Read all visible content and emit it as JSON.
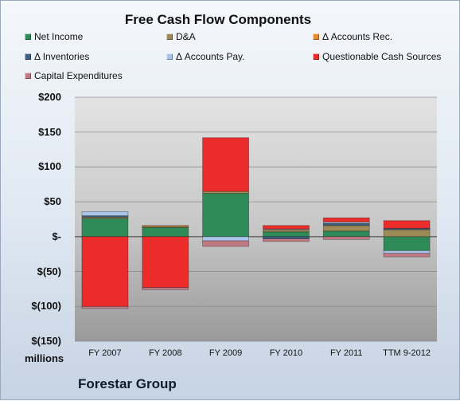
{
  "chart_data": {
    "type": "bar",
    "stacked": true,
    "title": "Free Cash Flow Components",
    "unit_label": "millions",
    "ylim": [
      -150,
      200
    ],
    "yticks": [
      200,
      150,
      100,
      50,
      0,
      -50,
      -100,
      -150
    ],
    "ytick_labels": [
      "$200",
      "$150",
      "$100",
      "$50",
      "$-",
      "$(50)",
      "$(100)",
      "$(150)"
    ],
    "grid": true,
    "legend_position": "top",
    "categories": [
      "FY 2007",
      "FY 2008",
      "FY 2009",
      "FY 2010",
      "FY 2011",
      "TTM 9-2012"
    ],
    "series": [
      {
        "name": "Net Income",
        "color": "#2e8b57",
        "values": [
          26,
          13,
          62,
          7,
          8,
          -20
        ]
      },
      {
        "name": "D&A",
        "color": "#9c8a57",
        "values": [
          2,
          2,
          3,
          3,
          8,
          10
        ]
      },
      {
        "name": "Δ Accounts Rec.",
        "color": "#e88a2e",
        "values": [
          0,
          1,
          0,
          0,
          0,
          0
        ]
      },
      {
        "name": "Δ Inventories",
        "color": "#3e5f80",
        "values": [
          2,
          0,
          0,
          -3,
          3,
          2
        ]
      },
      {
        "name": "Δ Accounts Pay.",
        "color": "#a9c4e6",
        "values": [
          6,
          0,
          -6,
          1,
          2,
          -4
        ]
      },
      {
        "name": "Questionable Cash Sources",
        "color": "#ec2b2b",
        "values": [
          -100,
          -73,
          77,
          5,
          6,
          11
        ]
      },
      {
        "name": "Capital Expenditures",
        "color": "#c07a84",
        "values": [
          -3,
          -3,
          -8,
          -4,
          -4,
          -5
        ]
      }
    ]
  },
  "footer": {
    "company": "Forestar Group"
  }
}
